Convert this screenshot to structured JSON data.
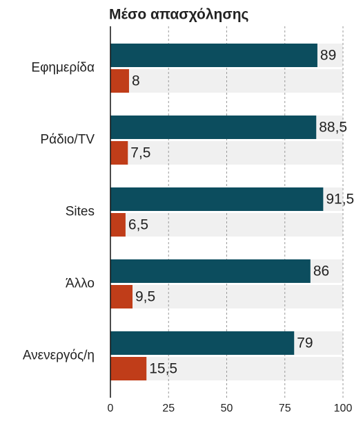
{
  "chart_data": {
    "type": "hbar",
    "title": "Μέσο απασχόλησης",
    "categories": [
      "Εφημερίδα",
      "Ράδιο/TV",
      "Sites",
      "Άλλο",
      "Ανενεργός/η"
    ],
    "series": [
      {
        "color": "#0c4d5e",
        "values": [
          89,
          88.5,
          91.5,
          86,
          79
        ],
        "value_labels": [
          "89",
          "88,5",
          "91,5",
          "86",
          "79"
        ]
      },
      {
        "color": "#c03d19",
        "values": [
          8,
          7.5,
          6.5,
          9.5,
          15.5
        ],
        "value_labels": [
          "8",
          "7,5",
          "6,5",
          "9,5",
          "15,5"
        ]
      }
    ],
    "xlim": [
      0,
      100
    ],
    "xticks": [
      0,
      25,
      50,
      75,
      100
    ],
    "grid": true
  }
}
